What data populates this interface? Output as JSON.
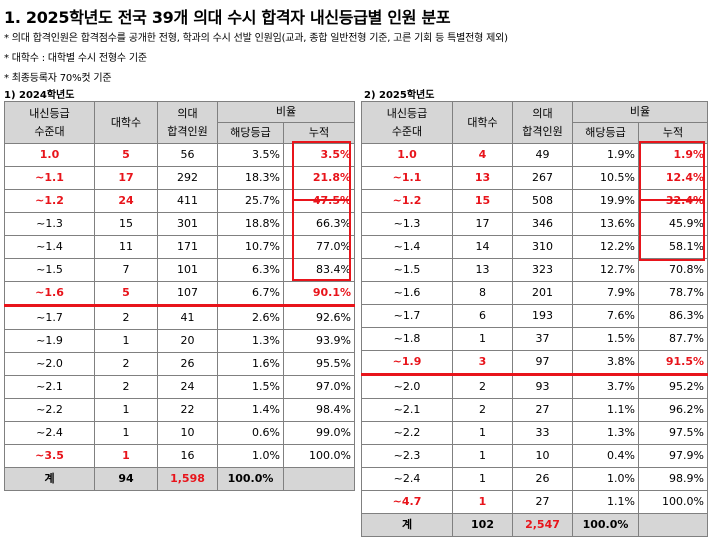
{
  "title": "1. 2025학년도 전국 39개 의대 수시 합격자 내신등급별 인원 분포",
  "notes": [
    "* 의대 합격인원은 합격점수를 공개한 전형, 학과의 수시 선발 인원임(교과, 종합 일반전형 기준, 고른 기회 등 특별전형 제외)",
    "* 대학수 :  대학별 수시 전형수 기준",
    "* 최종등록자 70%컷 기준"
  ],
  "headers": {
    "grade": "내신등급",
    "grade2": "수준대",
    "univ": "대학수",
    "admit": "의대",
    "admit2": "합격인원",
    "ratio": "비율",
    "ratio_this": "해당등급",
    "ratio_cum": "누적"
  },
  "table2024": {
    "label": "1) 2024학년도",
    "rows": [
      {
        "grade": "1.0",
        "univ": "5",
        "admit": "56",
        "ratio": "3.5%",
        "cum": "3.5%"
      },
      {
        "grade": "~1.1",
        "univ": "17",
        "admit": "292",
        "ratio": "18.3%",
        "cum": "21.8%"
      },
      {
        "grade": "~1.2",
        "univ": "24",
        "admit": "411",
        "ratio": "25.7%",
        "cum": "47.5%"
      },
      {
        "grade": "~1.3",
        "univ": "15",
        "admit": "301",
        "ratio": "18.8%",
        "cum": "66.3%"
      },
      {
        "grade": "~1.4",
        "univ": "11",
        "admit": "171",
        "ratio": "10.7%",
        "cum": "77.0%"
      },
      {
        "grade": "~1.5",
        "univ": "7",
        "admit": "101",
        "ratio": "6.3%",
        "cum": "83.4%"
      },
      {
        "grade": "~1.6",
        "univ": "5",
        "admit": "107",
        "ratio": "6.7%",
        "cum": "90.1%"
      },
      {
        "grade": "~1.7",
        "univ": "2",
        "admit": "41",
        "ratio": "2.6%",
        "cum": "92.6%"
      },
      {
        "grade": "~1.9",
        "univ": "1",
        "admit": "20",
        "ratio": "1.3%",
        "cum": "93.9%"
      },
      {
        "grade": "~2.0",
        "univ": "2",
        "admit": "26",
        "ratio": "1.6%",
        "cum": "95.5%"
      },
      {
        "grade": "~2.1",
        "univ": "2",
        "admit": "24",
        "ratio": "1.5%",
        "cum": "97.0%"
      },
      {
        "grade": "~2.2",
        "univ": "1",
        "admit": "22",
        "ratio": "1.4%",
        "cum": "98.4%"
      },
      {
        "grade": "~2.4",
        "univ": "1",
        "admit": "10",
        "ratio": "0.6%",
        "cum": "99.0%"
      },
      {
        "grade": "~3.5",
        "univ": "1",
        "admit": "16",
        "ratio": "1.0%",
        "cum": "100.0%"
      }
    ],
    "total": {
      "label": "계",
      "univ": "94",
      "admit": "1,598",
      "ratio": "100.0%"
    }
  },
  "table2025": {
    "label": "2) 2025학년도",
    "rows": [
      {
        "grade": "1.0",
        "univ": "4",
        "admit": "49",
        "ratio": "1.9%",
        "cum": "1.9%"
      },
      {
        "grade": "~1.1",
        "univ": "13",
        "admit": "267",
        "ratio": "10.5%",
        "cum": "12.4%"
      },
      {
        "grade": "~1.2",
        "univ": "15",
        "admit": "508",
        "ratio": "19.9%",
        "cum": "32.4%"
      },
      {
        "grade": "~1.3",
        "univ": "17",
        "admit": "346",
        "ratio": "13.6%",
        "cum": "45.9%"
      },
      {
        "grade": "~1.4",
        "univ": "14",
        "admit": "310",
        "ratio": "12.2%",
        "cum": "58.1%"
      },
      {
        "grade": "~1.5",
        "univ": "13",
        "admit": "323",
        "ratio": "12.7%",
        "cum": "70.8%"
      },
      {
        "grade": "~1.6",
        "univ": "8",
        "admit": "201",
        "ratio": "7.9%",
        "cum": "78.7%"
      },
      {
        "grade": "~1.7",
        "univ": "6",
        "admit": "193",
        "ratio": "7.6%",
        "cum": "86.3%"
      },
      {
        "grade": "~1.8",
        "univ": "1",
        "admit": "37",
        "ratio": "1.5%",
        "cum": "87.7%"
      },
      {
        "grade": "~1.9",
        "univ": "3",
        "admit": "97",
        "ratio": "3.8%",
        "cum": "91.5%"
      },
      {
        "grade": "~2.0",
        "univ": "2",
        "admit": "93",
        "ratio": "3.7%",
        "cum": "95.2%"
      },
      {
        "grade": "~2.1",
        "univ": "2",
        "admit": "27",
        "ratio": "1.1%",
        "cum": "96.2%"
      },
      {
        "grade": "~2.2",
        "univ": "1",
        "admit": "33",
        "ratio": "1.3%",
        "cum": "97.5%"
      },
      {
        "grade": "~2.3",
        "univ": "1",
        "admit": "10",
        "ratio": "0.4%",
        "cum": "97.9%"
      },
      {
        "grade": "~2.4",
        "univ": "1",
        "admit": "26",
        "ratio": "1.0%",
        "cum": "98.9%"
      },
      {
        "grade": "~4.7",
        "univ": "1",
        "admit": "27",
        "ratio": "1.1%",
        "cum": "100.0%"
      }
    ],
    "total": {
      "label": "계",
      "univ": "102",
      "admit": "2,547",
      "ratio": "100.0%"
    }
  }
}
